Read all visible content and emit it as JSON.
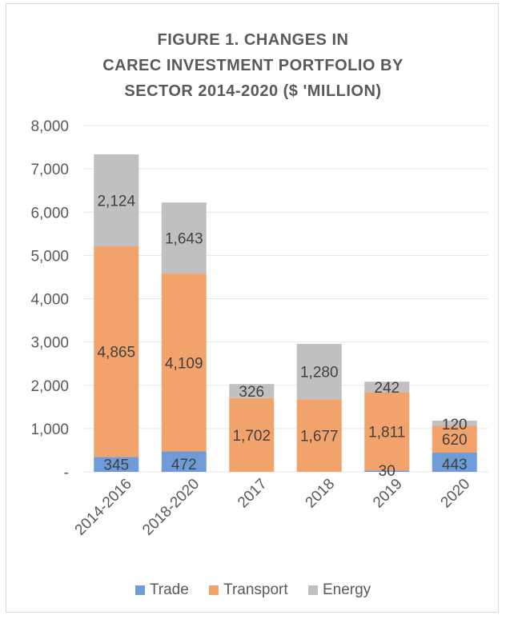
{
  "chart_data": {
    "type": "bar",
    "stacked": true,
    "title_lines": [
      "FIGURE 1. CHANGES IN",
      "CAREC INVESTMENT PORTFOLIO BY",
      "SECTOR 2014-2020 ($ 'MILLION)"
    ],
    "categories": [
      "2014-2016",
      "2018-2020",
      "2017",
      "2018",
      "2019",
      "2020"
    ],
    "series": [
      {
        "name": "Trade",
        "color": "#6f9bd8",
        "values": [
          345,
          472,
          0,
          0,
          30,
          443
        ],
        "labels": [
          "345",
          "472",
          "",
          "",
          "30",
          "443"
        ]
      },
      {
        "name": "Transport",
        "color": "#f2a36b",
        "values": [
          4865,
          4109,
          1702,
          1677,
          1811,
          620
        ],
        "labels": [
          "4,865",
          "4,109",
          "1,702",
          "1,677",
          "1,811",
          "620"
        ]
      },
      {
        "name": "Energy",
        "color": "#c0c0c0",
        "values": [
          2124,
          1643,
          326,
          1280,
          242,
          120
        ],
        "labels": [
          "2,124",
          "1,643",
          "326",
          "1,280",
          "242",
          "120"
        ]
      }
    ],
    "y_ticks": [
      0,
      1000,
      2000,
      3000,
      4000,
      5000,
      6000,
      7000,
      8000
    ],
    "y_tick_labels": [
      "-",
      "1,000",
      "2,000",
      "3,000",
      "4,000",
      "5,000",
      "6,000",
      "7,000",
      "8,000"
    ],
    "ylim": [
      0,
      8000
    ],
    "grid": true,
    "legend_position": "bottom"
  }
}
